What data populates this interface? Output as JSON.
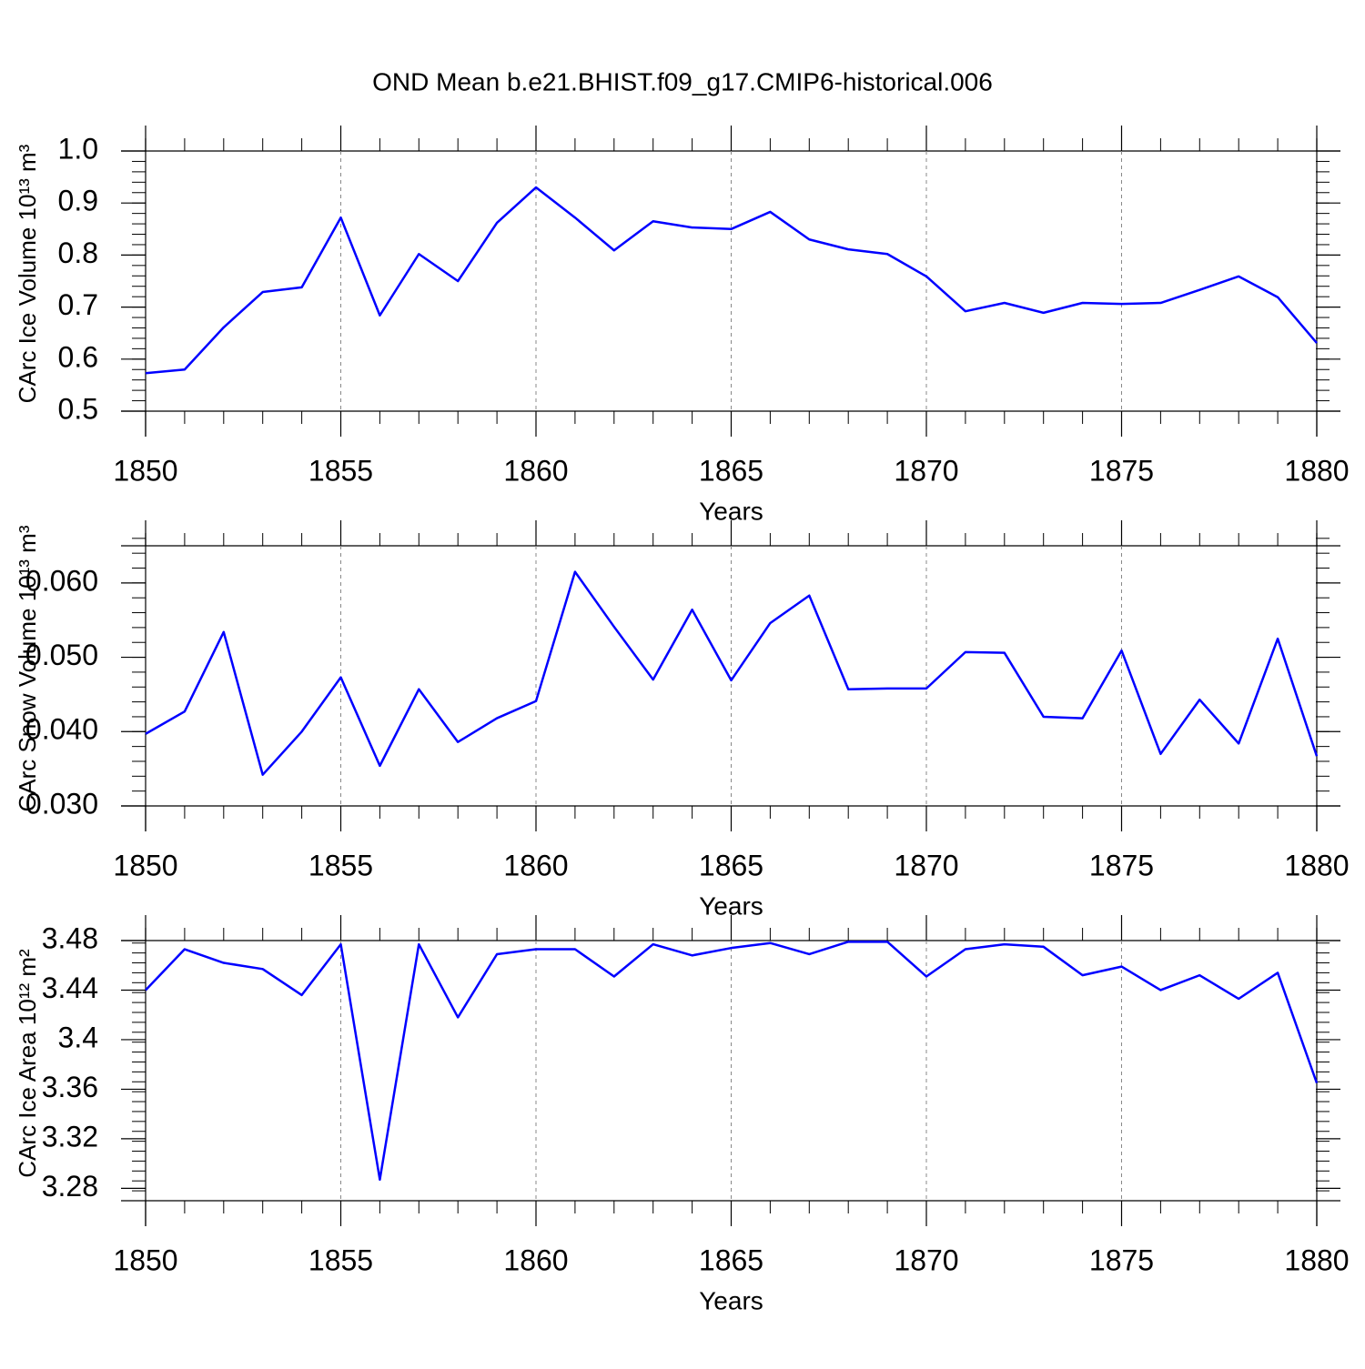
{
  "chart_data": [
    {
      "type": "line",
      "title": "OND Mean b.e21.BHIST.f09_g17.CMIP6-historical.006",
      "x_label": "Years",
      "y_label": "CArc Ice Volume 10¹³ m³",
      "x": [
        1850,
        1851,
        1852,
        1853,
        1854,
        1855,
        1856,
        1857,
        1858,
        1859,
        1860,
        1861,
        1862,
        1863,
        1864,
        1865,
        1866,
        1867,
        1868,
        1869,
        1870,
        1871,
        1872,
        1873,
        1874,
        1875,
        1876,
        1877,
        1878,
        1879,
        1880
      ],
      "values": [
        0.573,
        0.58,
        0.661,
        0.729,
        0.738,
        0.872,
        0.684,
        0.802,
        0.75,
        0.862,
        0.93,
        0.872,
        0.809,
        0.865,
        0.853,
        0.85,
        0.883,
        0.83,
        0.811,
        0.802,
        0.759,
        0.692,
        0.708,
        0.689,
        0.708,
        0.706,
        0.708,
        0.733,
        0.759,
        0.719,
        0.631
      ],
      "color": "#0000ff",
      "xlim": [
        1850,
        1880
      ],
      "xticks": [
        1850,
        1855,
        1860,
        1865,
        1870,
        1875,
        1880
      ],
      "ylim": [
        0.5,
        1.0
      ],
      "yticks": [
        0.5,
        0.6,
        0.7,
        0.8,
        0.9,
        {
          "value": 1,
          "label": "1.0"
        }
      ],
      "xminor": 1,
      "yminor": 0.02,
      "grid": true
    },
    {
      "type": "line",
      "x_label": "Years",
      "y_label": "CArc Snow Volume 10¹³ m³",
      "x": [
        1850,
        1851,
        1852,
        1853,
        1854,
        1855,
        1856,
        1857,
        1858,
        1859,
        1860,
        1861,
        1862,
        1863,
        1864,
        1865,
        1866,
        1867,
        1868,
        1869,
        1870,
        1871,
        1872,
        1873,
        1874,
        1875,
        1876,
        1877,
        1878,
        1879,
        1880
      ],
      "values": [
        0.0397,
        0.0427,
        0.0534,
        0.0342,
        0.04,
        0.0473,
        0.0354,
        0.0457,
        0.0386,
        0.0418,
        0.0441,
        0.0615,
        0.0541,
        0.047,
        0.0564,
        0.0469,
        0.0546,
        0.0583,
        0.0457,
        0.0458,
        0.0458,
        0.0507,
        0.0506,
        0.042,
        0.0418,
        0.0509,
        0.037,
        0.0443,
        0.0384,
        0.0525,
        0.0367
      ],
      "color": "#0000ff",
      "xlim": [
        1850,
        1880
      ],
      "xticks": [
        1850,
        1855,
        1860,
        1865,
        1870,
        1875,
        1880
      ],
      "ylim": [
        0.03,
        0.065
      ],
      "yticks": [
        {
          "value": 0.03,
          "label": "0.030"
        },
        {
          "value": 0.04,
          "label": "0.040"
        },
        {
          "value": 0.05,
          "label": "0.050"
        },
        {
          "value": 0.06,
          "label": "0.060"
        }
      ],
      "xminor": 1,
      "yminor": 0.002,
      "grid": true
    },
    {
      "type": "line",
      "x_label": "Years",
      "y_label": "CArc Ice Area 10¹² m²",
      "x": [
        1850,
        1851,
        1852,
        1853,
        1854,
        1855,
        1856,
        1857,
        1858,
        1859,
        1860,
        1861,
        1862,
        1863,
        1864,
        1865,
        1866,
        1867,
        1868,
        1869,
        1870,
        1871,
        1872,
        1873,
        1874,
        1875,
        1876,
        1877,
        1878,
        1879,
        1880
      ],
      "values": [
        3.44,
        3.473,
        3.462,
        3.457,
        3.436,
        3.477,
        3.287,
        3.477,
        3.418,
        3.469,
        3.473,
        3.473,
        3.451,
        3.477,
        3.468,
        3.474,
        3.478,
        3.469,
        3.479,
        3.479,
        3.451,
        3.473,
        3.477,
        3.475,
        3.452,
        3.459,
        3.44,
        3.452,
        3.433,
        3.454,
        3.365
      ],
      "color": "#0000ff",
      "xlim": [
        1850,
        1880
      ],
      "xticks": [
        1850,
        1855,
        1860,
        1865,
        1870,
        1875,
        1880
      ],
      "ylim": [
        3.27,
        3.48
      ],
      "yticks": [
        3.28,
        3.32,
        3.36,
        3.4,
        3.44,
        3.48
      ],
      "xminor": 1,
      "yminor": 0.008,
      "grid": true
    }
  ]
}
